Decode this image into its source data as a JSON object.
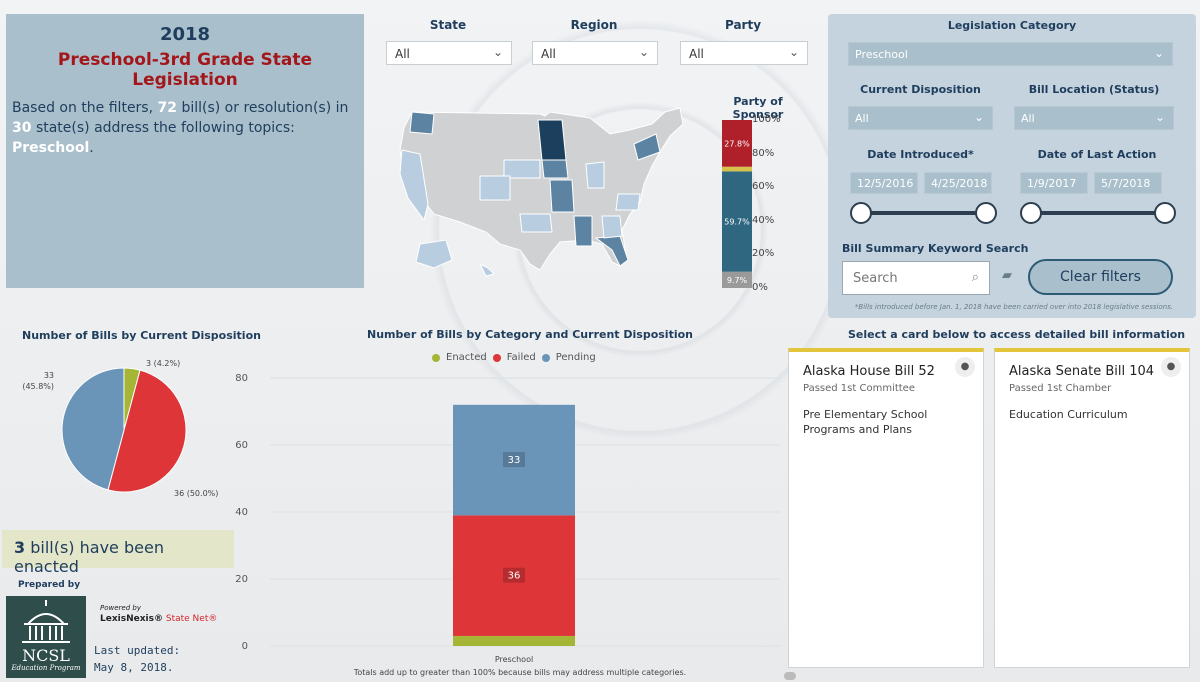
{
  "title": {
    "year": "2018",
    "main": "Preschool-3rd Grade State Legislation",
    "desc_prefix": "Based on the filters,",
    "bill_count": "72",
    "desc_mid": "bill(s) or resolution(s) in",
    "state_count": "30",
    "desc_mid2": "state(s) address the following topics:",
    "topic": "Preschool",
    "desc_end": "."
  },
  "filters": {
    "state": {
      "label": "State",
      "value": "All"
    },
    "region": {
      "label": "Region",
      "value": "All"
    },
    "party": {
      "label": "Party",
      "value": "All"
    }
  },
  "legislation_panel": {
    "category_label": "Legislation Category",
    "category_value": "Preschool",
    "disposition_label": "Current Disposition",
    "disposition_value": "All",
    "location_label": "Bill Location (Status)",
    "location_value": "All",
    "date_introduced_label": "Date Introduced*",
    "date_introduced_start": "12/5/2016",
    "date_introduced_end": "4/25/2018",
    "date_action_label": "Date of Last Action",
    "date_action_start": "1/9/2017",
    "date_action_end": "5/7/2018",
    "keyword_label": "Bill Summary Keyword Search",
    "search_placeholder": "Search",
    "clear_button": "Clear filters",
    "note": "*Bills introduced before Jan. 1, 2018 have been carried over into 2018 legislative sessions."
  },
  "party_chart": {
    "title": "Party of Sponsor",
    "ticks": [
      "100%",
      "80%",
      "60%",
      "40%",
      "20%",
      "0%"
    ],
    "segments": [
      {
        "label": "9.7%",
        "value": 9.7,
        "color": "#9a9a9a"
      },
      {
        "label": "59.7%",
        "value": 59.7,
        "color": "#2f6680"
      },
      {
        "label": "",
        "value": 2.8,
        "color": "#d4c24a"
      },
      {
        "label": "27.8%",
        "value": 27.8,
        "color": "#b0202a"
      }
    ]
  },
  "pie": {
    "title": "Number of Bills by Current Disposition",
    "slices": [
      {
        "name": "Enacted",
        "value": 3,
        "pct": "4.2%",
        "label": "3 (4.2%)",
        "color": "#a5b536"
      },
      {
        "name": "Failed",
        "value": 36,
        "pct": "50.0%",
        "label": "36 (50.0%)",
        "color": "#de3539"
      },
      {
        "name": "Pending",
        "value": 33,
        "pct": "45.8%",
        "label": "33",
        "label2": "(45.8%)",
        "color": "#6a95b9"
      }
    ]
  },
  "enacted_banner": {
    "count": "3",
    "text": "bill(s) have been enacted"
  },
  "bar_chart": {
    "title": "Number of Bills by Category and Current Disposition",
    "legend": [
      "Enacted",
      "Failed",
      "Pending"
    ],
    "y_ticks": [
      "80",
      "60",
      "40",
      "20",
      "0"
    ],
    "footnote": "Totals add up to greater than 100% because bills may address multiple categories."
  },
  "chart_data": {
    "type": "bar",
    "title": "Number of Bills by Category and Current Disposition",
    "categories": [
      "Preschool"
    ],
    "series": [
      {
        "name": "Enacted",
        "values": [
          3
        ],
        "color": "#a5b536"
      },
      {
        "name": "Failed",
        "values": [
          36
        ],
        "color": "#de3539"
      },
      {
        "name": "Pending",
        "values": [
          33
        ],
        "color": "#6a95b9"
      }
    ],
    "stacked": true,
    "ylim": [
      0,
      80
    ],
    "xlabel": "",
    "ylabel": ""
  },
  "cards_section": {
    "title": "Select a card below to access detailed bill information",
    "cards": [
      {
        "title": "Alaska House Bill 52",
        "status": "Passed 1st Committee",
        "topic": "Pre Elementary School Programs and Plans"
      },
      {
        "title": "Alaska Senate Bill 104",
        "status": "Passed 1st Chamber",
        "topic": "Education Curriculum"
      }
    ]
  },
  "credits": {
    "prepared_by": "Prepared by",
    "logo_text": "NCSL",
    "logo_sub": "Education Program",
    "powered_by": "Powered by",
    "lexis_name": "LexisNexis®",
    "state_net": "State Net®",
    "updated_label": "Last updated:",
    "updated_date": "May 8, 2018."
  }
}
